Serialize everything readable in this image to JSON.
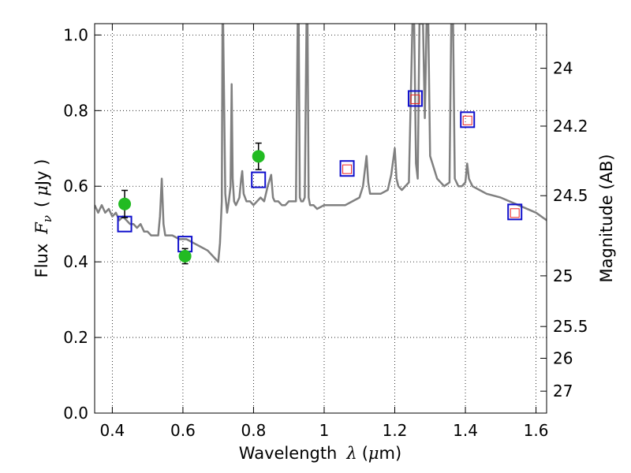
{
  "chart_data": {
    "type": "scatter",
    "xlabel": {
      "prefix": "Wavelength",
      "symbol": "λ",
      "unit_open": "(",
      "unit_mu": "μ",
      "unit_rest": "m)"
    },
    "ylabel": {
      "prefix": "Flux",
      "symbol": "F",
      "subscript": "ν",
      "unit_open": "(",
      "unit_mu": "μ",
      "unit_rest": "Jy )"
    },
    "y2label": "Magnitude (AB)",
    "xlim": [
      0.35,
      1.63
    ],
    "ylim": [
      0.0,
      1.03
    ],
    "x_ticks": [
      0.4,
      0.6,
      0.8,
      1.0,
      1.2,
      1.4,
      1.6
    ],
    "x_tick_labels": [
      "0.4",
      "0.6",
      "0.8",
      "1",
      "1.2",
      "1.4",
      "1.6"
    ],
    "y_ticks": [
      0.0,
      0.2,
      0.4,
      0.6,
      0.8,
      1.0
    ],
    "y_tick_labels": [
      "0.0",
      "0.2",
      "0.4",
      "0.6",
      "0.8",
      "1.0"
    ],
    "y2_ticks": [
      {
        "label": "24",
        "flux": 0.912
      },
      {
        "label": "24.2",
        "flux": 0.759
      },
      {
        "label": "24.5",
        "flux": 0.575
      },
      {
        "label": "25",
        "flux": 0.363
      },
      {
        "label": "25.5",
        "flux": 0.229
      },
      {
        "label": "26",
        "flux": 0.145
      },
      {
        "label": "27",
        "flux": 0.058
      }
    ],
    "grid": true,
    "colors": {
      "model": "#808080",
      "observed": "#22bb22",
      "model_band": "#1010cc",
      "fit_band": "#ee2222",
      "errorbar": "#000000"
    },
    "model_spectrum": {
      "x": [
        0.35,
        0.36,
        0.37,
        0.38,
        0.39,
        0.4,
        0.41,
        0.42,
        0.43,
        0.44,
        0.45,
        0.46,
        0.47,
        0.48,
        0.49,
        0.5,
        0.51,
        0.52,
        0.53,
        0.535,
        0.54,
        0.545,
        0.55,
        0.57,
        0.59,
        0.61,
        0.63,
        0.65,
        0.67,
        0.69,
        0.7,
        0.705,
        0.71,
        0.712,
        0.714,
        0.72,
        0.725,
        0.73,
        0.735,
        0.738,
        0.741,
        0.745,
        0.75,
        0.76,
        0.765,
        0.768,
        0.772,
        0.78,
        0.79,
        0.8,
        0.81,
        0.82,
        0.83,
        0.84,
        0.85,
        0.855,
        0.86,
        0.87,
        0.88,
        0.89,
        0.9,
        0.91,
        0.92,
        0.925,
        0.928,
        0.931,
        0.935,
        0.94,
        0.945,
        0.95,
        0.953,
        0.956,
        0.96,
        0.97,
        0.98,
        1.0,
        1.02,
        1.04,
        1.06,
        1.08,
        1.1,
        1.11,
        1.12,
        1.125,
        1.13,
        1.14,
        1.16,
        1.18,
        1.19,
        1.2,
        1.205,
        1.21,
        1.22,
        1.23,
        1.24,
        1.25,
        1.255,
        1.26,
        1.265,
        1.27,
        1.275,
        1.28,
        1.285,
        1.29,
        1.295,
        1.3,
        1.32,
        1.34,
        1.355,
        1.36,
        1.365,
        1.37,
        1.38,
        1.39,
        1.4,
        1.405,
        1.41,
        1.42,
        1.44,
        1.46,
        1.5,
        1.55,
        1.6,
        1.63
      ],
      "y": [
        0.55,
        0.53,
        0.55,
        0.53,
        0.54,
        0.52,
        0.53,
        0.51,
        0.52,
        0.51,
        0.5,
        0.5,
        0.49,
        0.5,
        0.48,
        0.48,
        0.47,
        0.47,
        0.47,
        0.52,
        0.62,
        0.5,
        0.47,
        0.47,
        0.46,
        0.46,
        0.45,
        0.44,
        0.43,
        0.41,
        0.4,
        0.45,
        0.56,
        1.03,
        1.03,
        0.58,
        0.53,
        0.56,
        0.6,
        0.87,
        0.62,
        0.56,
        0.55,
        0.57,
        0.62,
        0.64,
        0.58,
        0.56,
        0.56,
        0.55,
        0.56,
        0.57,
        0.56,
        0.6,
        0.63,
        0.57,
        0.56,
        0.56,
        0.55,
        0.55,
        0.56,
        0.56,
        0.56,
        1.03,
        1.03,
        0.57,
        0.56,
        0.56,
        0.57,
        1.03,
        1.03,
        0.57,
        0.55,
        0.55,
        0.54,
        0.55,
        0.55,
        0.55,
        0.55,
        0.56,
        0.57,
        0.6,
        0.68,
        0.61,
        0.58,
        0.58,
        0.58,
        0.59,
        0.63,
        0.7,
        0.62,
        0.6,
        0.59,
        0.6,
        0.61,
        1.03,
        1.03,
        0.66,
        0.62,
        1.03,
        1.03,
        1.03,
        0.78,
        1.03,
        1.03,
        0.68,
        0.62,
        0.6,
        0.61,
        1.03,
        1.03,
        0.62,
        0.6,
        0.6,
        0.61,
        0.66,
        0.62,
        0.6,
        0.59,
        0.58,
        0.57,
        0.55,
        0.53,
        0.51
      ]
    },
    "observed": [
      {
        "x": 0.435,
        "y": 0.553,
        "yerr": 0.036
      },
      {
        "x": 0.606,
        "y": 0.415,
        "yerr": 0.02
      },
      {
        "x": 0.814,
        "y": 0.679,
        "yerr": 0.035
      }
    ],
    "model_band_fluxes": [
      {
        "x": 0.435,
        "y": 0.5
      },
      {
        "x": 0.606,
        "y": 0.447
      },
      {
        "x": 0.814,
        "y": 0.617
      },
      {
        "x": 1.065,
        "y": 0.647
      },
      {
        "x": 1.258,
        "y": 0.832
      },
      {
        "x": 1.406,
        "y": 0.776
      },
      {
        "x": 1.54,
        "y": 0.532
      }
    ],
    "fit_band_fluxes": [
      {
        "x": 1.065,
        "y": 0.645
      },
      {
        "x": 1.258,
        "y": 0.83
      },
      {
        "x": 1.406,
        "y": 0.774
      },
      {
        "x": 1.54,
        "y": 0.529
      }
    ]
  }
}
